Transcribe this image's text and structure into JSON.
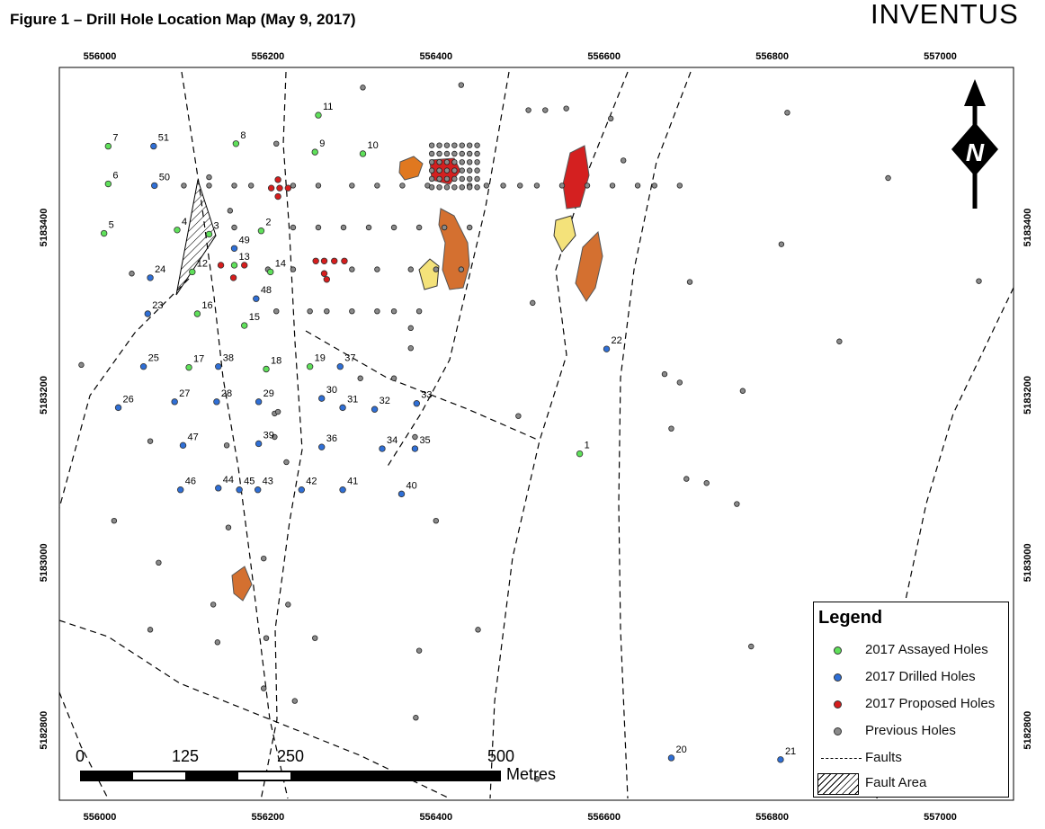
{
  "title": "Figure 1 – Drill Hole Location Map (May 9, 2017)",
  "logo": "INVENTUS",
  "north_label": "N",
  "x_ticks": [
    "556000",
    "556200",
    "556400",
    "556600",
    "556800",
    "557000"
  ],
  "y_ticks": [
    "5183400",
    "5183200",
    "5183000",
    "5182800"
  ],
  "scale": {
    "labels": [
      "0",
      "125",
      "250",
      "500"
    ],
    "unit": "Metres"
  },
  "legend": {
    "title": "Legend",
    "items": [
      {
        "label": "2017 Assayed Holes",
        "type": "dot",
        "color": "#5fe05a"
      },
      {
        "label": "2017 Drilled Holes",
        "type": "dot",
        "color": "#2f6fd6"
      },
      {
        "label": "2017 Proposed Holes",
        "type": "dot",
        "color": "#d61d1d"
      },
      {
        "label": "Previous Holes",
        "type": "dot",
        "color": "#8a8a8a"
      },
      {
        "label": "Faults",
        "type": "dash"
      },
      {
        "label": "Fault Area",
        "type": "hatch"
      }
    ]
  },
  "colors": {
    "assayed": "#5fe05a",
    "drilled": "#2f6fd6",
    "proposed": "#d61d1d",
    "previous": "#8a8a8a",
    "zone_red": "#d42020",
    "zone_orange": "#e07820",
    "zone_yellow": "#f4e27a"
  },
  "holes": {
    "assayed": [
      {
        "id": "7",
        "e": 556010,
        "n": 5183497
      },
      {
        "id": "6",
        "e": 556010,
        "n": 5183452
      },
      {
        "id": "5",
        "e": 556005,
        "n": 5183393
      },
      {
        "id": "8",
        "e": 556162,
        "n": 5183500
      },
      {
        "id": "4",
        "e": 556092,
        "n": 5183397
      },
      {
        "id": "3",
        "e": 556130,
        "n": 5183392
      },
      {
        "id": "2",
        "e": 556192,
        "n": 5183396
      },
      {
        "id": "12",
        "e": 556110,
        "n": 5183347
      },
      {
        "id": "13",
        "e": 556160,
        "n": 5183355
      },
      {
        "id": "14",
        "e": 556203,
        "n": 5183347
      },
      {
        "id": "16",
        "e": 556116,
        "n": 5183297
      },
      {
        "id": "15",
        "e": 556172,
        "n": 5183283
      },
      {
        "id": "17",
        "e": 556106,
        "n": 5183233
      },
      {
        "id": "18",
        "e": 556198,
        "n": 5183231
      },
      {
        "id": "19",
        "e": 556250,
        "n": 5183234
      },
      {
        "id": "11",
        "e": 556260,
        "n": 5183534
      },
      {
        "id": "9",
        "e": 556256,
        "n": 5183490
      },
      {
        "id": "10",
        "e": 556313,
        "n": 5183488
      },
      {
        "id": "1",
        "e": 556571,
        "n": 5183130
      }
    ],
    "drilled": [
      {
        "id": "51",
        "e": 556064,
        "n": 5183497
      },
      {
        "id": "50",
        "e": 556065,
        "n": 5183450
      },
      {
        "id": "49",
        "e": 556160,
        "n": 5183375
      },
      {
        "id": "24",
        "e": 556060,
        "n": 5183340
      },
      {
        "id": "48",
        "e": 556186,
        "n": 5183315
      },
      {
        "id": "23",
        "e": 556057,
        "n": 5183297
      },
      {
        "id": "25",
        "e": 556052,
        "n": 5183234
      },
      {
        "id": "38",
        "e": 556141,
        "n": 5183234
      },
      {
        "id": "37",
        "e": 556286,
        "n": 5183234
      },
      {
        "id": "26",
        "e": 556022,
        "n": 5183185
      },
      {
        "id": "27",
        "e": 556089,
        "n": 5183192
      },
      {
        "id": "28",
        "e": 556139,
        "n": 5183192
      },
      {
        "id": "29",
        "e": 556189,
        "n": 5183192
      },
      {
        "id": "30",
        "e": 556264,
        "n": 5183196
      },
      {
        "id": "31",
        "e": 556289,
        "n": 5183185
      },
      {
        "id": "32",
        "e": 556327,
        "n": 5183183
      },
      {
        "id": "33",
        "e": 556377,
        "n": 5183190
      },
      {
        "id": "47",
        "e": 556099,
        "n": 5183140
      },
      {
        "id": "39",
        "e": 556189,
        "n": 5183142
      },
      {
        "id": "36",
        "e": 556264,
        "n": 5183138
      },
      {
        "id": "34",
        "e": 556336,
        "n": 5183136
      },
      {
        "id": "35",
        "e": 556375,
        "n": 5183136
      },
      {
        "id": "46",
        "e": 556096,
        "n": 5183087
      },
      {
        "id": "44",
        "e": 556141,
        "n": 5183089
      },
      {
        "id": "45",
        "e": 556166,
        "n": 5183087
      },
      {
        "id": "43",
        "e": 556188,
        "n": 5183087
      },
      {
        "id": "42",
        "e": 556240,
        "n": 5183087
      },
      {
        "id": "41",
        "e": 556289,
        "n": 5183087
      },
      {
        "id": "40",
        "e": 556359,
        "n": 5183082
      },
      {
        "id": "22",
        "e": 556603,
        "n": 5183255
      },
      {
        "id": "20",
        "e": 556680,
        "n": 5182767
      },
      {
        "id": "21",
        "e": 556810,
        "n": 5182765
      }
    ],
    "proposed": [
      {
        "e": 556212,
        "n": 5183457
      },
      {
        "e": 556204,
        "n": 5183447
      },
      {
        "e": 556214,
        "n": 5183447
      },
      {
        "e": 556224,
        "n": 5183447
      },
      {
        "e": 556212,
        "n": 5183437
      },
      {
        "e": 556144,
        "n": 5183355
      },
      {
        "e": 556172,
        "n": 5183355
      },
      {
        "e": 556159,
        "n": 5183340
      },
      {
        "e": 556257,
        "n": 5183360
      },
      {
        "e": 556267,
        "n": 5183360
      },
      {
        "e": 556279,
        "n": 5183360
      },
      {
        "e": 556291,
        "n": 5183360
      },
      {
        "e": 556267,
        "n": 5183345
      },
      {
        "e": 556270,
        "n": 5183338
      }
    ]
  }
}
